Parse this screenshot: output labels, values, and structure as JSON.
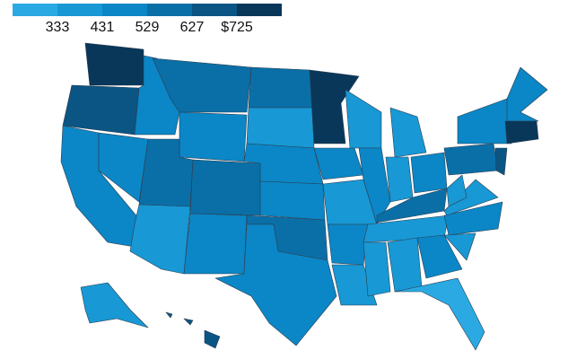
{
  "legend": {
    "colors": [
      "#2aa9e3",
      "#1898d5",
      "#0b86c6",
      "#0a6fa7",
      "#0a5583",
      "#08375a"
    ],
    "ticks": [
      333,
      431,
      529,
      627,
      {
        "value": 725,
        "label": "$725"
      }
    ]
  }
}
